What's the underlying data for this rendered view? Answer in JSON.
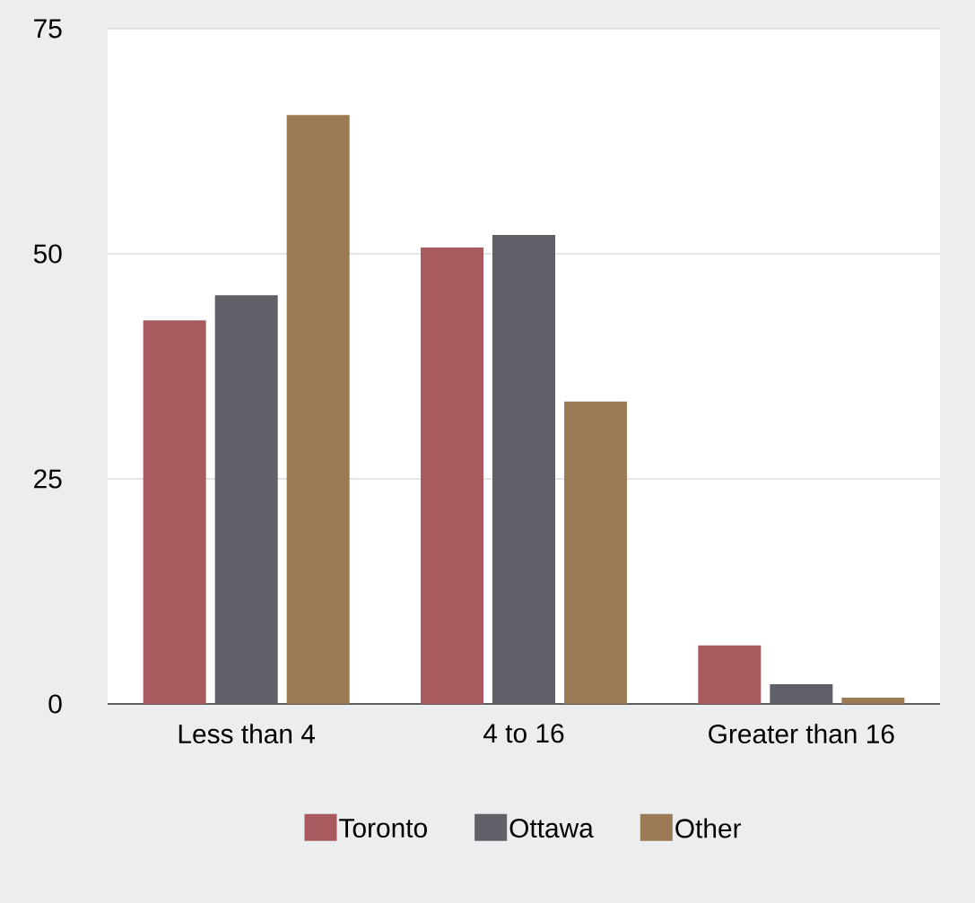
{
  "chart_data": {
    "type": "bar",
    "categories": [
      "Less than 4",
      "4 to 16",
      "Greater than 16"
    ],
    "series": [
      {
        "name": "Toronto",
        "color": "#a85a5e",
        "values": [
          42.6,
          50.7,
          6.5
        ]
      },
      {
        "name": "Ottawa",
        "color": "#5f6068",
        "values": [
          45.4,
          52.1,
          2.2
        ]
      },
      {
        "name": "Other",
        "color": "#9c7a55",
        "values": [
          65.4,
          33.6,
          0.7
        ]
      }
    ],
    "ylim": [
      0,
      75
    ],
    "yticks": [
      0,
      25,
      50,
      75
    ],
    "grid": "y",
    "legend": "bottom"
  }
}
